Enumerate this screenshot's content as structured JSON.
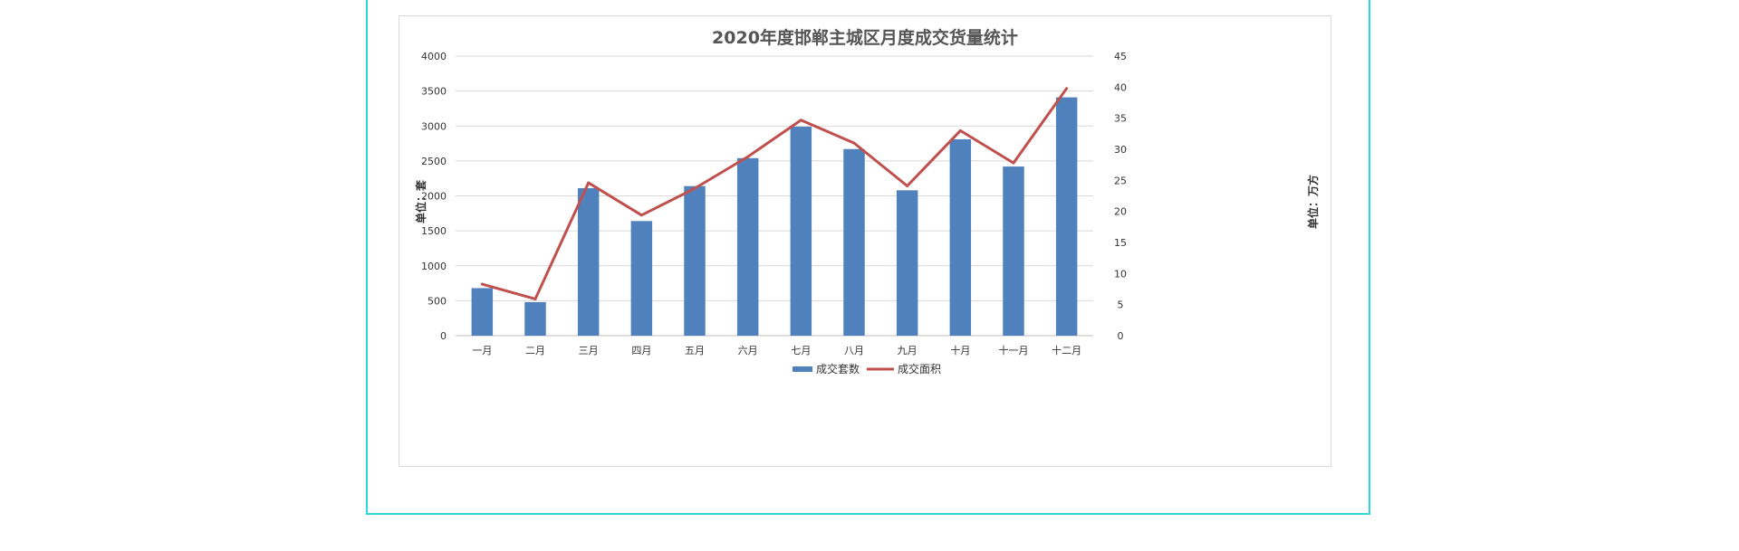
{
  "chart_data": {
    "type": "bar",
    "title": "2020年度邯郸主城区月度成交货量统计",
    "categories": [
      "一月",
      "二月",
      "三月",
      "四月",
      "五月",
      "六月",
      "七月",
      "八月",
      "九月",
      "十月",
      "十一月",
      "十二月"
    ],
    "series": [
      {
        "name": "成交套数",
        "type": "bar",
        "axis": "left",
        "color": "#4f81bd",
        "values": [
          680,
          480,
          2110,
          1640,
          2140,
          2540,
          2990,
          2670,
          2080,
          2810,
          2420,
          3410
        ]
      },
      {
        "name": "成交面积",
        "type": "line",
        "axis": "right",
        "color": "#c0504d",
        "values": [
          8.3,
          5.9,
          24.6,
          19.4,
          23.7,
          28.8,
          34.7,
          31.0,
          24.1,
          33.0,
          27.8,
          39.8
        ]
      }
    ],
    "ylabel": "单位：套",
    "y2label": "单位：万方",
    "ylim": [
      0,
      4000
    ],
    "y2lim": [
      0,
      45
    ],
    "yticks": [
      0,
      500,
      1000,
      1500,
      2000,
      2500,
      3000,
      3500,
      4000
    ],
    "y2ticks": [
      0,
      5,
      10,
      15,
      20,
      25,
      30,
      35,
      40,
      45
    ],
    "grid": true,
    "legend": "bottom"
  }
}
